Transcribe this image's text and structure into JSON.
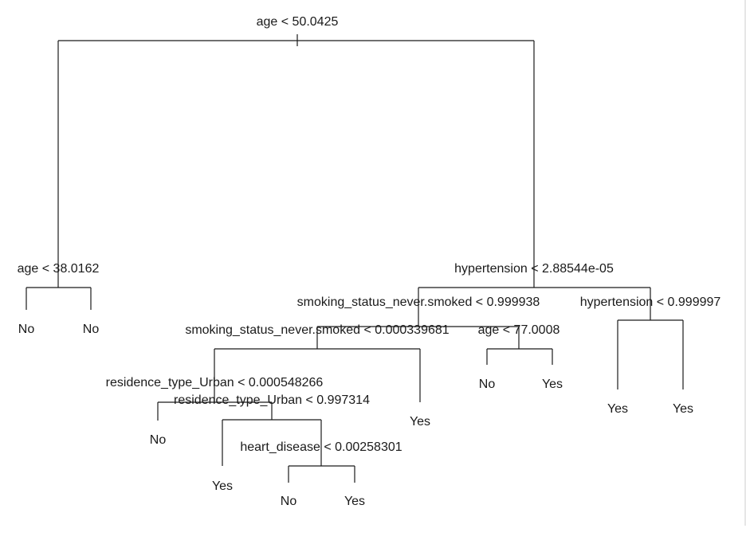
{
  "tree": {
    "splits": {
      "root": "age < 50.0425",
      "left_age": "age < 38.0162",
      "right_hyper": "hypertension < 2.88544e-05",
      "smoke1": "smoking_status_never.smoked < 0.999938",
      "hyper2": "hypertension < 0.999997",
      "smoke2": "smoking_status_never.smoked < 0.000339681",
      "age77": "age < 77.0008",
      "res1": "residence_type_Urban < 0.000548266",
      "res2": "residence_type_Urban < 0.997314",
      "heart": "heart_disease < 0.00258301"
    },
    "leaves": {
      "l1": "No",
      "l2": "No",
      "l3": "No",
      "l4": "Yes",
      "l5": "No",
      "l6": "Yes",
      "l7": "Yes",
      "l8": "No",
      "l9": "Yes",
      "l10": "Yes",
      "l11": "Yes"
    }
  }
}
